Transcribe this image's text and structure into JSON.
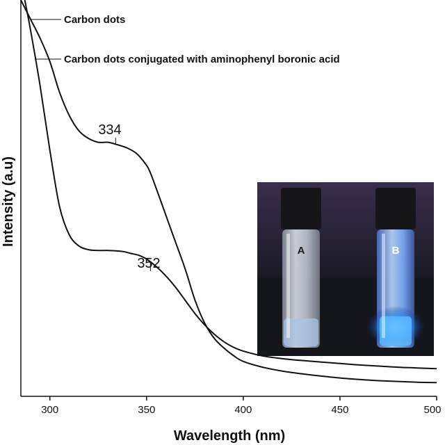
{
  "chart_data": {
    "type": "line",
    "title": "",
    "xlabel": "Wavelength (nm)",
    "ylabel": "Intensity (a.u)",
    "xlim": [
      285,
      500
    ],
    "ylim": [
      0,
      1
    ],
    "x_ticks": [
      300,
      350,
      400,
      450,
      500
    ],
    "grid": false,
    "series": [
      {
        "name": "Carbon dots",
        "x": [
          287,
          290,
          295,
          300,
          305,
          310,
          315,
          320,
          325,
          330,
          334,
          338,
          342,
          346,
          350,
          355,
          360,
          365,
          370,
          375,
          380,
          385,
          390,
          395,
          400,
          410,
          420,
          430,
          440,
          450,
          460,
          470,
          480,
          490,
          500
        ],
        "y": [
          1.0,
          0.92,
          0.77,
          0.6,
          0.45,
          0.375,
          0.345,
          0.335,
          0.333,
          0.333,
          0.332,
          0.33,
          0.325,
          0.32,
          0.31,
          0.29,
          0.265,
          0.235,
          0.2,
          0.165,
          0.135,
          0.11,
          0.09,
          0.075,
          0.065,
          0.052,
          0.045,
          0.04,
          0.036,
          0.032,
          0.028,
          0.025,
          0.022,
          0.02,
          0.018
        ]
      },
      {
        "name": "Carbon dots conjugated with aminophenyl boronic acid",
        "x": [
          285,
          290,
          295,
          300,
          305,
          310,
          315,
          320,
          325,
          330,
          334,
          340,
          345,
          350,
          352,
          355,
          360,
          365,
          370,
          375,
          380,
          385,
          390,
          395,
          400,
          410,
          420,
          430,
          440,
          450,
          460,
          470,
          480,
          490,
          500
        ],
        "y": [
          1.0,
          0.95,
          0.9,
          0.84,
          0.76,
          0.7,
          0.66,
          0.64,
          0.63,
          0.63,
          0.625,
          0.615,
          0.6,
          0.57,
          0.55,
          0.51,
          0.44,
          0.37,
          0.3,
          0.22,
          0.16,
          0.12,
          0.095,
          0.075,
          0.06,
          0.045,
          0.035,
          0.028,
          0.022,
          0.017,
          0.013,
          0.01,
          0.008,
          0.006,
          0.005
        ]
      }
    ],
    "annotations": [
      {
        "text": "334",
        "x": 334
      },
      {
        "text": "352",
        "x": 352
      }
    ],
    "inset": {
      "vial_labels": [
        "A",
        "B"
      ]
    },
    "colors": {
      "line": "#111111",
      "vial_glow": "#1e90ff"
    }
  }
}
